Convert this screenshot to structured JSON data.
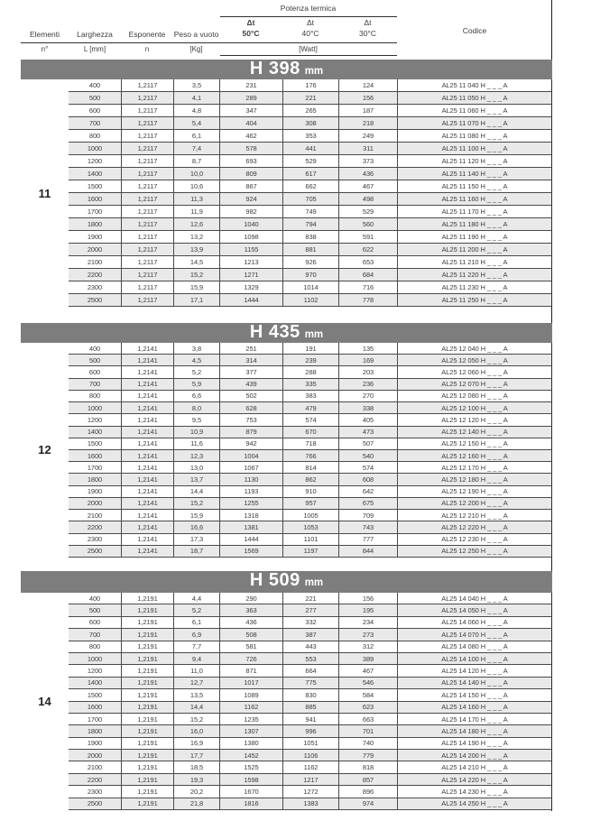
{
  "header": {
    "group_label": "Potenza termica",
    "watt_label": "[Watt]",
    "cols": {
      "elementi": "Elementi",
      "elementi_sub": "n°",
      "larghezza": "Larghezza",
      "larghezza_sub": "L [mm]",
      "esponente": "Esponente",
      "esponente_sub": "n",
      "peso": "Peso a vuoto",
      "peso_sub": "[Kg]",
      "dt": "Δt",
      "dt50": "50°C",
      "dt40": "40°C",
      "dt30": "30°C",
      "codice": "Codice"
    }
  },
  "colors": {
    "banner_bg": "#7d7d7d",
    "row_alt": "#e9e9e9",
    "grid_line": "#4a4a4a",
    "text": "#3d3d3d"
  },
  "sections": [
    {
      "height_label": "H 398",
      "unit": "mm",
      "elements": "11",
      "rows": [
        [
          "400",
          "1,2117",
          "3,5",
          "231",
          "176",
          "124",
          "AL25 11 040 H _ _ _ A"
        ],
        [
          "500",
          "1,2117",
          "4,1",
          "289",
          "221",
          "156",
          "AL25 11 050 H _ _ _ A"
        ],
        [
          "600",
          "1,2117",
          "4,8",
          "347",
          "265",
          "187",
          "AL25 11 060 H _ _ _ A"
        ],
        [
          "700",
          "1,2117",
          "5,4",
          "404",
          "308",
          "218",
          "AL25 11 070 H _ _ _ A"
        ],
        [
          "800",
          "1,2117",
          "6,1",
          "462",
          "353",
          "249",
          "AL25 11 080 H _ _ _ A"
        ],
        [
          "1000",
          "1,2117",
          "7,4",
          "578",
          "441",
          "311",
          "AL25 11 100 H _ _ _ A"
        ],
        [
          "1200",
          "1,2117",
          "8,7",
          "693",
          "529",
          "373",
          "AL25 11 120 H _ _ _ A"
        ],
        [
          "1400",
          "1,2117",
          "10,0",
          "809",
          "617",
          "436",
          "AL25 11 140 H _ _ _ A"
        ],
        [
          "1500",
          "1,2117",
          "10,6",
          "867",
          "662",
          "467",
          "AL25 11 150 H _ _ _ A"
        ],
        [
          "1600",
          "1,2117",
          "11,3",
          "924",
          "705",
          "498",
          "AL25 11 160 H _ _ _ A"
        ],
        [
          "1700",
          "1,2117",
          "11,9",
          "982",
          "749",
          "529",
          "AL25 11 170 H _ _ _ A"
        ],
        [
          "1800",
          "1,2117",
          "12,6",
          "1040",
          "794",
          "560",
          "AL25 11 180 H _ _ _ A"
        ],
        [
          "1900",
          "1,2117",
          "13,2",
          "1098",
          "838",
          "591",
          "AL25 11 190 H _ _ _ A"
        ],
        [
          "2000",
          "1,2117",
          "13,9",
          "1155",
          "881",
          "622",
          "AL25 11 200 H _ _ _ A"
        ],
        [
          "2100",
          "1,2117",
          "14,5",
          "1213",
          "926",
          "653",
          "AL25 11 210 H _ _ _ A"
        ],
        [
          "2200",
          "1,2117",
          "15,2",
          "1271",
          "970",
          "684",
          "AL25 11 220 H _ _ _ A"
        ],
        [
          "2300",
          "1,2117",
          "15,9",
          "1329",
          "1014",
          "716",
          "AL25 11 230 H _ _ _ A"
        ],
        [
          "2500",
          "1,2117",
          "17,1",
          "1444",
          "1102",
          "778",
          "AL25 11 250 H _ _ _ A"
        ]
      ]
    },
    {
      "height_label": "H 435",
      "unit": "mm",
      "elements": "12",
      "rows": [
        [
          "400",
          "1,2141",
          "3,8",
          "251",
          "191",
          "135",
          "AL25 12 040 H _ _ _ A"
        ],
        [
          "500",
          "1,2141",
          "4,5",
          "314",
          "239",
          "169",
          "AL25 12 050 H _ _ _ A"
        ],
        [
          "600",
          "1,2141",
          "5,2",
          "377",
          "288",
          "203",
          "AL25 12 060 H _ _ _ A"
        ],
        [
          "700",
          "1,2141",
          "5,9",
          "439",
          "335",
          "236",
          "AL25 12 070 H _ _ _ A"
        ],
        [
          "800",
          "1,2141",
          "6,6",
          "502",
          "383",
          "270",
          "AL25 12 080 H _ _ _ A"
        ],
        [
          "1000",
          "1,2141",
          "8,0",
          "628",
          "479",
          "338",
          "AL25 12 100 H _ _ _ A"
        ],
        [
          "1200",
          "1,2141",
          "9,5",
          "753",
          "574",
          "405",
          "AL25 12 120 H _ _ _ A"
        ],
        [
          "1400",
          "1,2141",
          "10,9",
          "879",
          "670",
          "473",
          "AL25 12 140 H _ _ _ A"
        ],
        [
          "1500",
          "1,2141",
          "11,6",
          "942",
          "718",
          "507",
          "AL25 12 150 H _ _ _ A"
        ],
        [
          "1600",
          "1,2141",
          "12,3",
          "1004",
          "766",
          "540",
          "AL25 12 160 H _ _ _ A"
        ],
        [
          "1700",
          "1,2141",
          "13,0",
          "1067",
          "814",
          "574",
          "AL25 12 170 H _ _ _ A"
        ],
        [
          "1800",
          "1,2141",
          "13,7",
          "1130",
          "862",
          "608",
          "AL25 12 180 H _ _ _ A"
        ],
        [
          "1900",
          "1,2141",
          "14,4",
          "1193",
          "910",
          "642",
          "AL25 12 190 H _ _ _ A"
        ],
        [
          "2000",
          "1,2141",
          "15,2",
          "1255",
          "957",
          "675",
          "AL25 12 200 H _ _ _ A"
        ],
        [
          "2100",
          "1,2141",
          "15,9",
          "1318",
          "1005",
          "709",
          "AL25 12 210 H _ _ _ A"
        ],
        [
          "2200",
          "1,2141",
          "16,6",
          "1381",
          "1053",
          "743",
          "AL25 12 220 H _ _ _ A"
        ],
        [
          "2300",
          "1,2141",
          "17,3",
          "1444",
          "1101",
          "777",
          "AL25 12 230 H _ _ _ A"
        ],
        [
          "2500",
          "1,2141",
          "18,7",
          "1569",
          "1197",
          "844",
          "AL25 12 250 H _ _ _ A"
        ]
      ]
    },
    {
      "height_label": "H 509",
      "unit": "mm",
      "elements": "14",
      "rows": [
        [
          "400",
          "1,2191",
          "4,4",
          "290",
          "221",
          "156",
          "AL25 14 040 H _ _ _ A"
        ],
        [
          "500",
          "1,2191",
          "5,2",
          "363",
          "277",
          "195",
          "AL25 14 050 H _ _ _ A"
        ],
        [
          "600",
          "1,2191",
          "6,1",
          "436",
          "332",
          "234",
          "AL25 14 060 H _ _ _ A"
        ],
        [
          "700",
          "1,2191",
          "6,9",
          "508",
          "387",
          "273",
          "AL25 14 070 H _ _ _ A"
        ],
        [
          "800",
          "1,2191",
          "7,7",
          "581",
          "443",
          "312",
          "AL25 14 080 H _ _ _ A"
        ],
        [
          "1000",
          "1,2191",
          "9,4",
          "726",
          "553",
          "389",
          "AL25 14 100 H _ _ _ A"
        ],
        [
          "1200",
          "1,2191",
          "11,0",
          "871",
          "664",
          "467",
          "AL25 14 120 H _ _ _ A"
        ],
        [
          "1400",
          "1,2191",
          "12,7",
          "1017",
          "775",
          "546",
          "AL25 14 140 H _ _ _ A"
        ],
        [
          "1500",
          "1,2191",
          "13,5",
          "1089",
          "830",
          "584",
          "AL25 14 150 H _ _ _ A"
        ],
        [
          "1600",
          "1,2191",
          "14,4",
          "1162",
          "885",
          "623",
          "AL25 14 160 H _ _ _ A"
        ],
        [
          "1700",
          "1,2191",
          "15,2",
          "1235",
          "941",
          "663",
          "AL25 14 170 H _ _ _ A"
        ],
        [
          "1800",
          "1,2191",
          "16,0",
          "1307",
          "996",
          "701",
          "AL25 14 180 H _ _ _ A"
        ],
        [
          "1900",
          "1,2191",
          "16,9",
          "1380",
          "1051",
          "740",
          "AL25 14 190 H _ _ _ A"
        ],
        [
          "2000",
          "1,2191",
          "17,7",
          "1452",
          "1106",
          "779",
          "AL25 14 200 H _ _ _ A"
        ],
        [
          "2100",
          "1,2191",
          "18,5",
          "1525",
          "1162",
          "818",
          "AL25 14 210 H _ _ _ A"
        ],
        [
          "2200",
          "1,2191",
          "19,3",
          "1598",
          "1217",
          "857",
          "AL25 14 220 H _ _ _ A"
        ],
        [
          "2300",
          "1,2191",
          "20,2",
          "1670",
          "1272",
          "896",
          "AL25 14 230 H _ _ _ A"
        ],
        [
          "2500",
          "1,2191",
          "21,8",
          "1816",
          "1383",
          "974",
          "AL25 14 250 H _ _ _ A"
        ]
      ]
    }
  ]
}
